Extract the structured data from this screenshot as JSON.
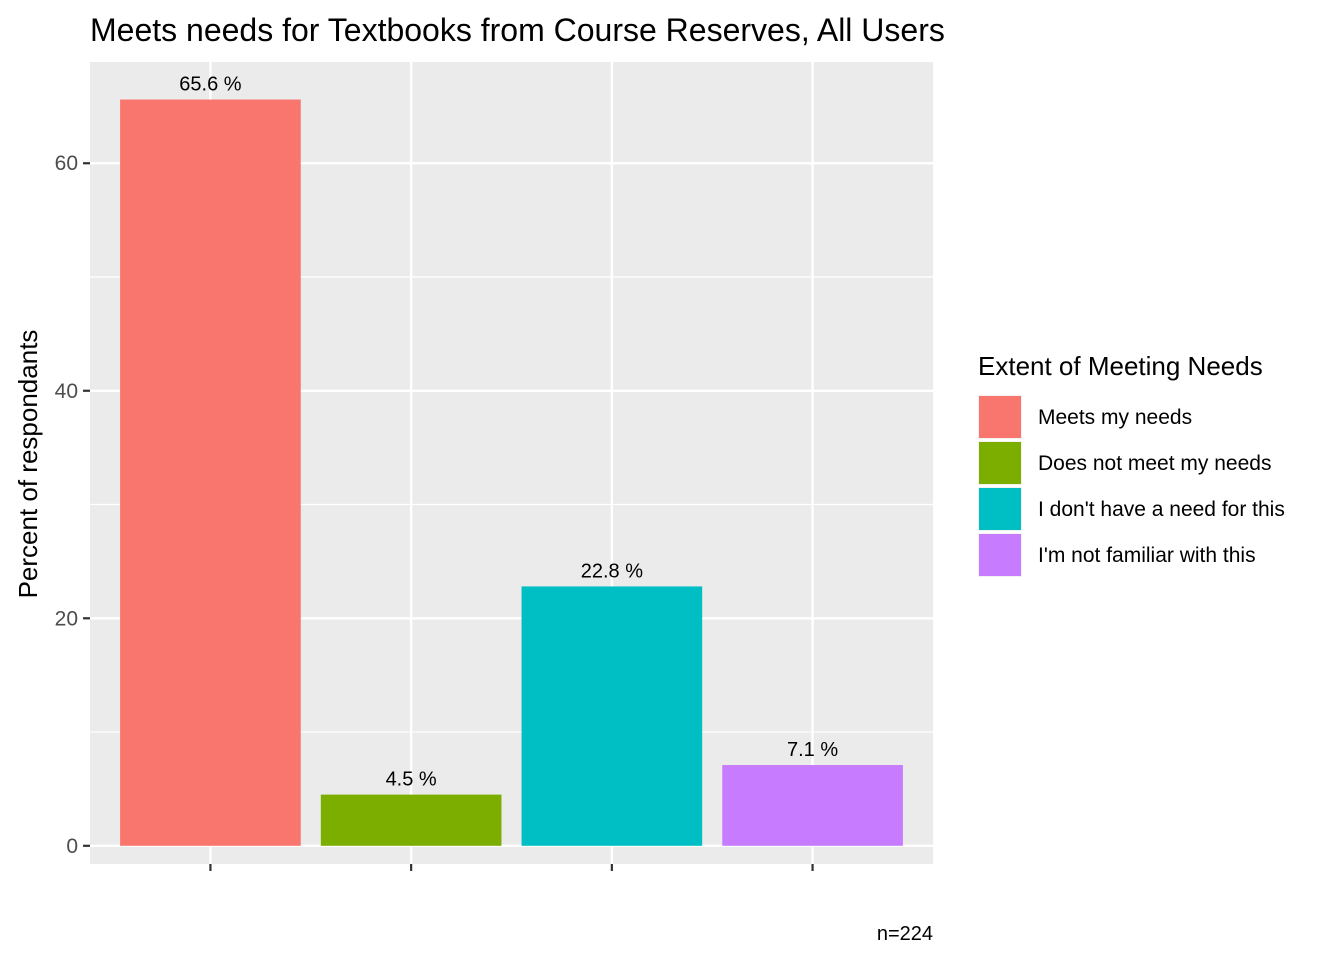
{
  "chart_data": {
    "type": "bar",
    "title": "Meets needs for Textbooks from Course Reserves, All Users",
    "xlabel": "",
    "ylabel": "Percent of respondants",
    "ylim": [
      -1.6,
      68.9
    ],
    "yticks": [
      0,
      20,
      40,
      60
    ],
    "grid": true,
    "legend": {
      "title": "Extent of Meeting Needs",
      "placement": "right"
    },
    "categories": [
      "Meets my needs",
      "Does not meet my needs",
      "I don't have a need for this",
      "I'm not familiar with this"
    ],
    "values": [
      65.6,
      4.5,
      22.8,
      7.1
    ],
    "data_labels": [
      "65.6 %",
      "4.5 %",
      "22.8 %",
      "7.1 %"
    ],
    "colors": [
      "#F8766D",
      "#7CAE00",
      "#00BFC4",
      "#C77CFF"
    ],
    "caption": "n=224"
  }
}
